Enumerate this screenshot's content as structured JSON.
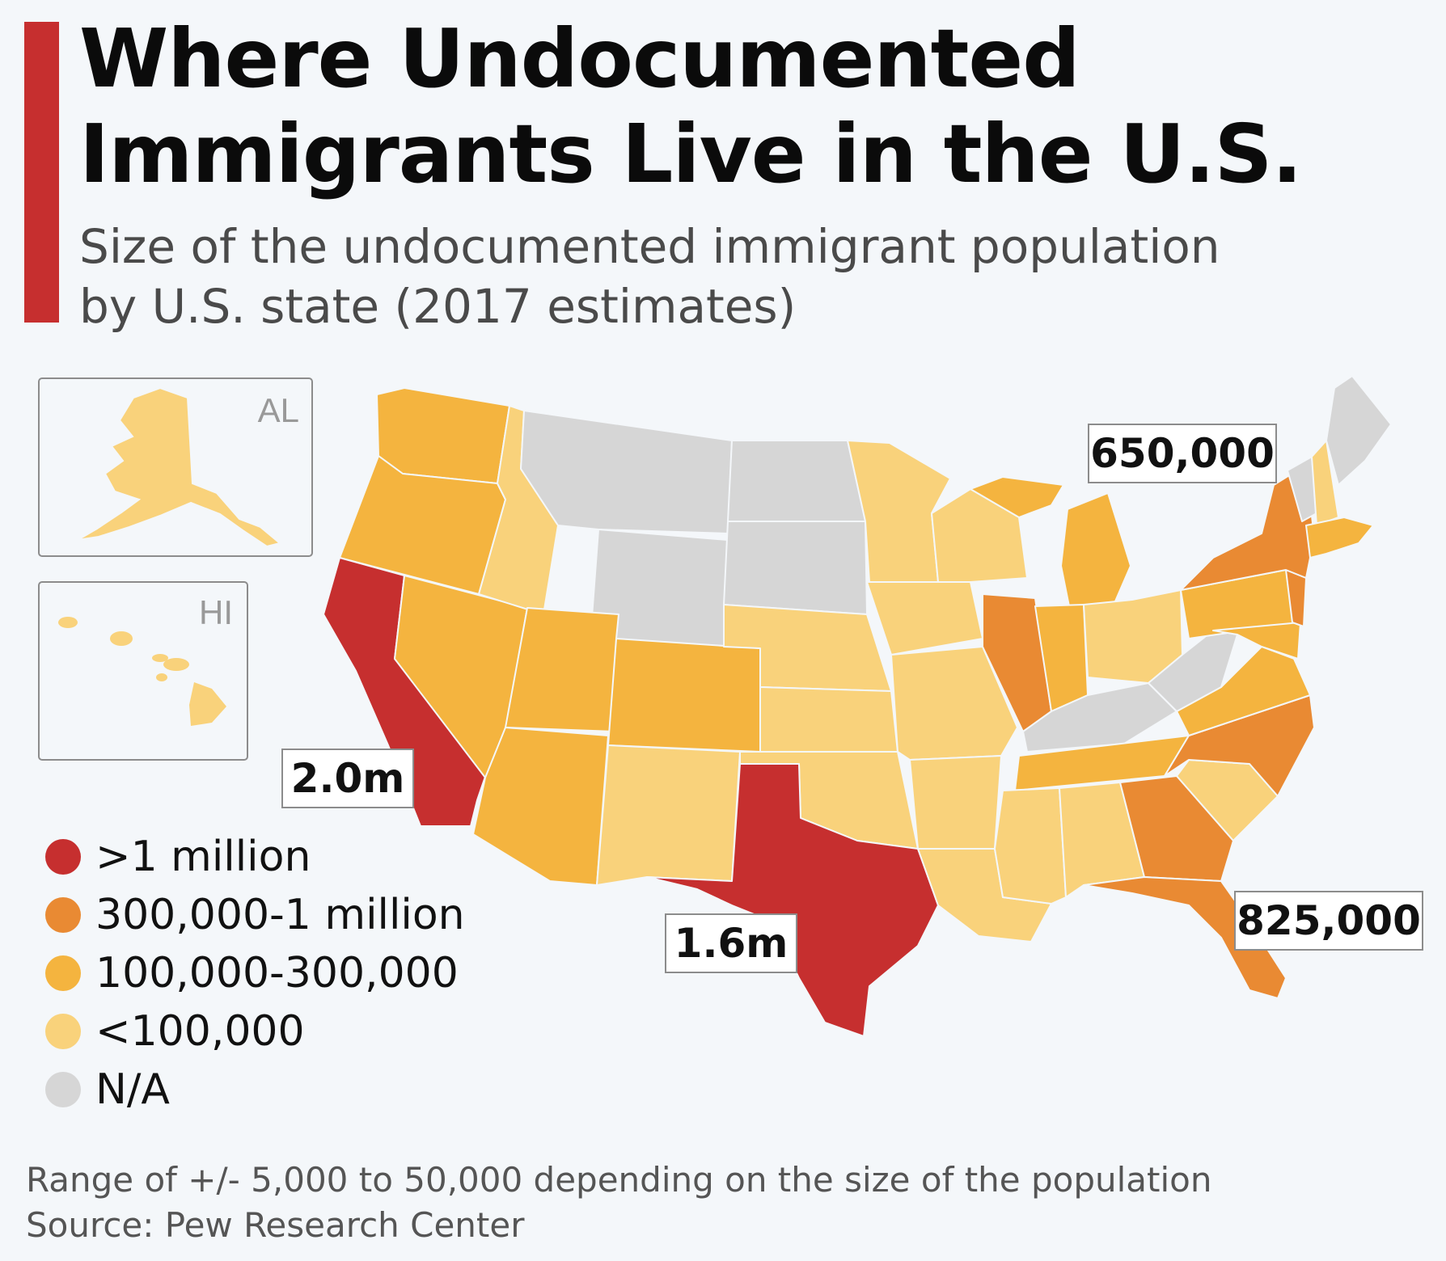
{
  "header": {
    "title_line1": "Where Undocumented",
    "title_line2": "Immigrants Live in the U.S.",
    "subtitle_line1": "Size of the undocumented immigrant population",
    "subtitle_line2": "by U.S. state (2017 estimates)",
    "accent_color": "#c62f2f"
  },
  "insets": {
    "alaska_label": "AL",
    "hawaii_label": "HI"
  },
  "callouts": {
    "california": "2.0m",
    "texas": "1.6m",
    "new_york": "650,000",
    "florida": "825,000"
  },
  "legend": [
    {
      "label": ">1 million",
      "color": "#c62f2f"
    },
    {
      "label": "300,000-1 million",
      "color": "#e98a33"
    },
    {
      "label": "100,000-300,000",
      "color": "#f4b43f"
    },
    {
      "label": "<100,000",
      "color": "#f9d27b"
    },
    {
      "label": "N/A",
      "color": "#d6d6d6"
    }
  ],
  "footer": {
    "note": "Range of +/- 5,000 to 50,000 depending on the size of the population",
    "source": "Source: Pew Research Center"
  }
}
